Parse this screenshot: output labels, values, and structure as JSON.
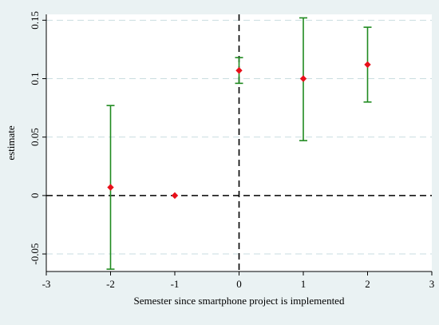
{
  "chart_data": {
    "type": "scatter",
    "subtype": "coefficient-plot-with-confidence-intervals",
    "title": "",
    "xlabel": "Semester since smartphone project is implemented",
    "ylabel": "estimate",
    "xlim": [
      -3,
      3
    ],
    "ylim": [
      -0.065,
      0.155
    ],
    "xticks": [
      "-3",
      "-2",
      "-1",
      "0",
      "1",
      "2",
      "3"
    ],
    "yticks": [
      "-0.05",
      "0",
      "0.05",
      "0.1",
      "0.15"
    ],
    "ytick_values": [
      -0.05,
      0,
      0.05,
      0.1,
      0.15
    ],
    "xtick_values": [
      -3,
      -2,
      -1,
      0,
      1,
      2,
      3
    ],
    "grid": "horizontal dashed",
    "reference_lines": [
      {
        "axis": "y",
        "value": 0,
        "style": "dashed"
      },
      {
        "axis": "x",
        "value": 0,
        "style": "dashed"
      }
    ],
    "series": [
      {
        "points": [
          {
            "x": -2,
            "y": 0.007,
            "lower": -0.063,
            "upper": 0.077
          },
          {
            "x": -1,
            "y": 0.0,
            "lower": null,
            "upper": null
          },
          {
            "x": 0,
            "y": 0.107,
            "lower": 0.096,
            "upper": 0.118
          },
          {
            "x": 1,
            "y": 0.1,
            "lower": 0.047,
            "upper": 0.152
          },
          {
            "x": 2,
            "y": 0.112,
            "lower": 0.08,
            "upper": 0.144
          }
        ]
      }
    ],
    "colors": {
      "marker": "#e8101a",
      "ci": "#1f8a1f",
      "background": "#eaf2f3",
      "plot_background": "#ffffff",
      "grid": "#c9dde0"
    }
  }
}
